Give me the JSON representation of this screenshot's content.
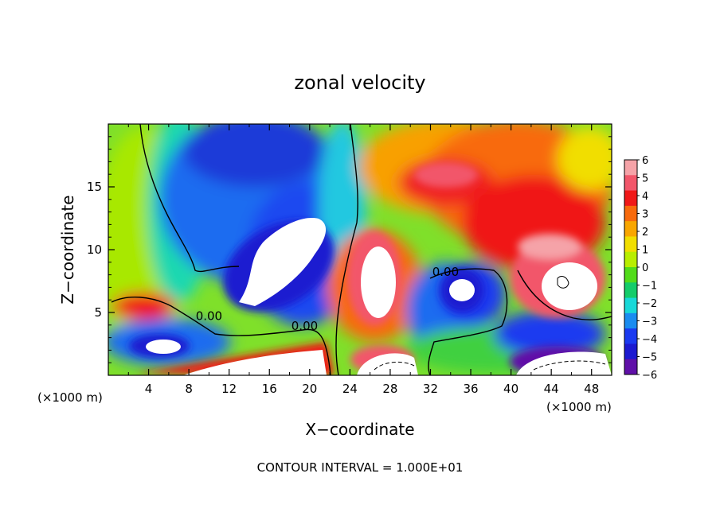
{
  "chart_data": {
    "type": "heatmap",
    "title": "zonal velocity",
    "xlabel": "X−coordinate",
    "ylabel": "Z−coordinate",
    "x_unit_left": "(×1000 m)",
    "x_unit_right": "(×1000 m)",
    "footer": "CONTOUR INTERVAL = 1.000E+01",
    "xlim": [
      0,
      50
    ],
    "ylim": [
      0,
      20
    ],
    "x_ticks": [
      4,
      8,
      12,
      16,
      20,
      24,
      28,
      32,
      36,
      40,
      44,
      48
    ],
    "y_ticks": [
      5,
      10,
      15
    ],
    "colorbar": {
      "range": [
        -6,
        6
      ],
      "ticks": [
        6,
        5,
        4,
        3,
        2,
        1,
        0,
        -1,
        -2,
        -3,
        -4,
        -5,
        -6
      ],
      "colors": [
        "#f5a3a8",
        "#f2566a",
        "#f01818",
        "#f86a0c",
        "#f9a600",
        "#f1de00",
        "#b8ee00",
        "#52dc1a",
        "#14cc6a",
        "#18d8d8",
        "#1a8cf0",
        "#1a3af0",
        "#1c1ad0",
        "#6010a8"
      ]
    },
    "contour_labels": [
      {
        "text": "0.00",
        "x": 10.0,
        "y": 4.4
      },
      {
        "text": "0.00",
        "x": 19.5,
        "y": 3.6
      },
      {
        "text": "0.00",
        "x": 33.5,
        "y": 7.9
      }
    ]
  }
}
